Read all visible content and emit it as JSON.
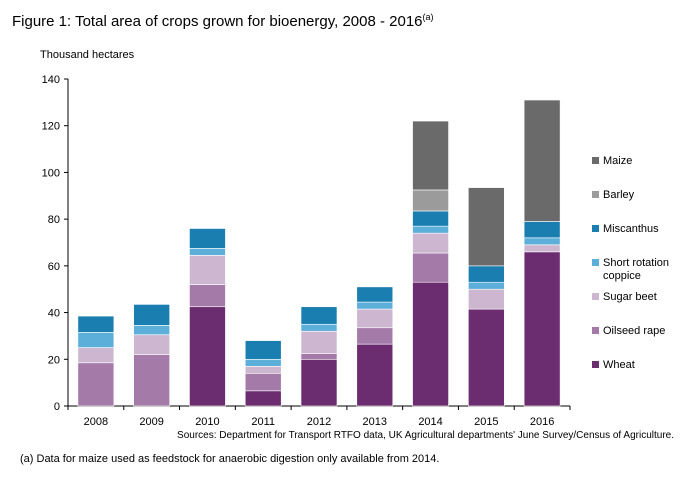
{
  "figure": {
    "title": "Figure 1: Total area of crops grown for bioenergy, 2008 - 2016",
    "title_note": "(a)",
    "source": "Sources: Department for Transport RTFO data,  UK Agricultural departments' June Survey/Census of Agriculture.",
    "footnote": "(a)   Data for maize used as feedstock for anaerobic digestion only available from 2014."
  },
  "chart_data": {
    "type": "bar",
    "stacked": true,
    "ylabel": "Thousand hectares",
    "xlabel": "",
    "ylim": [
      0,
      140
    ],
    "yticks": [
      0,
      20,
      40,
      60,
      80,
      100,
      120,
      140
    ],
    "grid": false,
    "legend_position": "right",
    "categories": [
      "2008",
      "2009",
      "2010",
      "2011",
      "2012",
      "2013",
      "2014",
      "2015",
      "2016"
    ],
    "series": [
      {
        "name": "Wheat",
        "color": "#6b2d6f",
        "values": [
          0,
          0,
          42.5,
          6.5,
          20,
          26.5,
          53,
          41.5,
          66
        ]
      },
      {
        "name": "Oilseed rape",
        "color": "#a47ba8",
        "values": [
          18.5,
          22,
          9.5,
          7.5,
          2.5,
          7,
          12.5,
          0,
          0
        ]
      },
      {
        "name": "Sugar beet",
        "color": "#cdb6d0",
        "values": [
          6.5,
          8.5,
          12.5,
          3,
          9.5,
          8,
          8.5,
          8.5,
          3
        ]
      },
      {
        "name": "Short rotation coppice",
        "color": "#5cafd9",
        "values": [
          6.5,
          4,
          3,
          3,
          3,
          3,
          3,
          3,
          3
        ]
      },
      {
        "name": "Miscanthus",
        "color": "#1a7fb0",
        "values": [
          7,
          9,
          8.5,
          8,
          7.5,
          6.5,
          6.5,
          7,
          7
        ]
      },
      {
        "name": "Barley",
        "color": "#9b9b9b",
        "values": [
          0,
          0,
          0,
          0,
          0,
          0,
          9,
          0,
          0
        ]
      },
      {
        "name": "Maize",
        "color": "#6a6a6a",
        "values": [
          0,
          0,
          0,
          0,
          0,
          0,
          29.5,
          33.5,
          52
        ]
      }
    ],
    "legend_order": [
      "Maize",
      "Barley",
      "Miscanthus",
      "Short rotation coppice",
      "Sugar beet",
      "Oilseed rape",
      "Wheat"
    ]
  }
}
